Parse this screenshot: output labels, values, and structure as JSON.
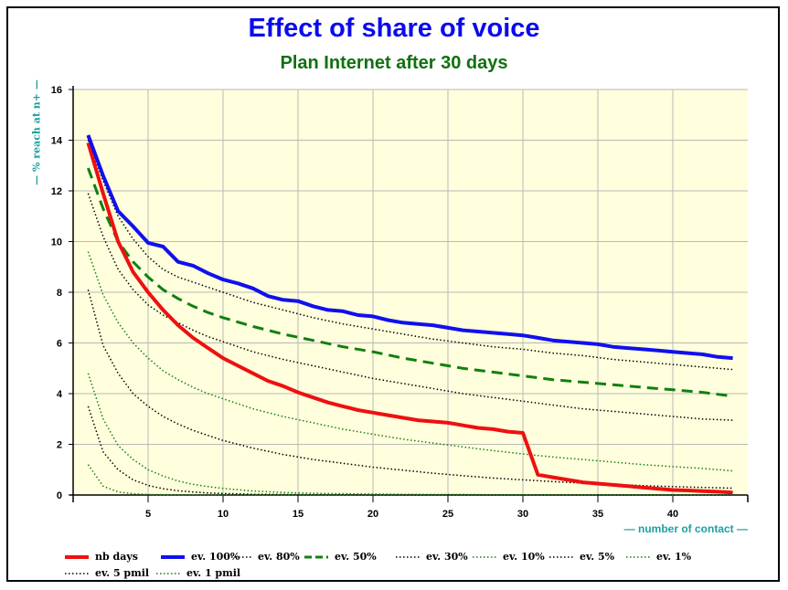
{
  "chart_data": {
    "type": "line",
    "title": "Effect of share of voice",
    "subtitle": "Plan Internet after 30 days",
    "xlabel": "— number of contact —",
    "ylabel": "— % reach at n+ —",
    "xlim": [
      0,
      45
    ],
    "ylim": [
      0,
      16
    ],
    "x_ticks": [
      5,
      10,
      15,
      20,
      25,
      30,
      35,
      40
    ],
    "y_ticks": [
      0,
      2,
      4,
      6,
      8,
      10,
      12,
      14,
      16
    ],
    "grid": true,
    "legend_position": "bottom",
    "plot_background": "#ffffdd",
    "series": [
      {
        "name": "nb days",
        "color": "#ee1010",
        "style": "solid",
        "width": 4,
        "x": [
          1,
          2,
          3,
          4,
          5,
          6,
          7,
          8,
          9,
          10,
          11,
          12,
          13,
          14,
          15,
          16,
          17,
          18,
          19,
          20,
          21,
          22,
          23,
          24,
          25,
          26,
          27,
          28,
          29,
          30,
          31,
          32,
          33,
          34,
          35,
          36,
          37,
          38,
          39,
          40,
          41,
          42,
          43,
          44
        ],
        "values": [
          13.9,
          11.9,
          10.0,
          8.8,
          8.0,
          7.3,
          6.7,
          6.2,
          5.8,
          5.4,
          5.1,
          4.8,
          4.5,
          4.3,
          4.05,
          3.85,
          3.65,
          3.5,
          3.35,
          3.25,
          3.15,
          3.05,
          2.95,
          2.9,
          2.85,
          2.75,
          2.65,
          2.6,
          2.5,
          2.45,
          0.8,
          0.7,
          0.6,
          0.5,
          0.45,
          0.4,
          0.35,
          0.3,
          0.25,
          0.2,
          0.18,
          0.15,
          0.13,
          0.1
        ]
      },
      {
        "name": "ev. 100%",
        "color": "#1010ee",
        "style": "solid",
        "width": 4,
        "x": [
          1,
          2,
          3,
          4,
          5,
          6,
          7,
          8,
          9,
          10,
          11,
          12,
          13,
          14,
          15,
          16,
          17,
          18,
          19,
          20,
          21,
          22,
          23,
          24,
          25,
          26,
          27,
          28,
          29,
          30,
          31,
          32,
          33,
          34,
          35,
          36,
          37,
          38,
          39,
          40,
          41,
          42,
          43,
          44
        ],
        "values": [
          14.2,
          12.6,
          11.2,
          10.6,
          9.95,
          9.8,
          9.2,
          9.05,
          8.75,
          8.5,
          8.35,
          8.15,
          7.85,
          7.7,
          7.65,
          7.45,
          7.3,
          7.25,
          7.1,
          7.05,
          6.9,
          6.8,
          6.75,
          6.7,
          6.6,
          6.5,
          6.45,
          6.4,
          6.35,
          6.3,
          6.2,
          6.1,
          6.05,
          6.0,
          5.95,
          5.85,
          5.8,
          5.75,
          5.7,
          5.65,
          5.6,
          5.55,
          5.45,
          5.4
        ]
      },
      {
        "name": "ev. 80%",
        "color": "#000000",
        "style": "dotted",
        "width": 1.5,
        "x": [
          1,
          2,
          3,
          4,
          5,
          6,
          7,
          8,
          9,
          10,
          12,
          14,
          16,
          18,
          20,
          22,
          24,
          26,
          28,
          30,
          32,
          34,
          36,
          38,
          40,
          42,
          44
        ],
        "values": [
          14.0,
          12.4,
          11.0,
          10.1,
          9.4,
          8.9,
          8.6,
          8.4,
          8.2,
          8.0,
          7.6,
          7.3,
          7.0,
          6.75,
          6.55,
          6.35,
          6.15,
          6.0,
          5.85,
          5.75,
          5.6,
          5.5,
          5.35,
          5.25,
          5.15,
          5.05,
          4.95
        ]
      },
      {
        "name": "ev. 50%",
        "color": "#108010",
        "style": "dashed",
        "width": 3,
        "x": [
          1,
          2,
          3,
          4,
          5,
          6,
          7,
          8,
          9,
          10,
          12,
          14,
          16,
          18,
          20,
          22,
          24,
          26,
          28,
          30,
          32,
          34,
          36,
          38,
          40,
          42,
          44
        ],
        "values": [
          12.9,
          11.3,
          10.0,
          9.2,
          8.6,
          8.1,
          7.75,
          7.45,
          7.2,
          7.0,
          6.65,
          6.35,
          6.1,
          5.85,
          5.65,
          5.4,
          5.2,
          5.0,
          4.85,
          4.7,
          4.55,
          4.45,
          4.35,
          4.25,
          4.15,
          4.05,
          3.9
        ]
      },
      {
        "name": "ev. 30%",
        "color": "#000000",
        "style": "dotted",
        "width": 1.5,
        "x": [
          1,
          2,
          3,
          4,
          5,
          6,
          7,
          8,
          9,
          10,
          12,
          14,
          16,
          18,
          20,
          22,
          24,
          26,
          28,
          30,
          32,
          34,
          36,
          38,
          40,
          42,
          44
        ],
        "values": [
          11.9,
          10.2,
          8.9,
          8.1,
          7.5,
          7.1,
          6.8,
          6.5,
          6.25,
          6.05,
          5.65,
          5.35,
          5.1,
          4.85,
          4.6,
          4.4,
          4.2,
          4.0,
          3.85,
          3.7,
          3.55,
          3.4,
          3.3,
          3.2,
          3.1,
          3.0,
          2.95
        ]
      },
      {
        "name": "ev. 10%",
        "color": "#108010",
        "style": "dotted",
        "width": 1.5,
        "x": [
          1,
          2,
          3,
          4,
          5,
          6,
          7,
          8,
          9,
          10,
          12,
          14,
          16,
          18,
          20,
          22,
          24,
          26,
          28,
          30,
          32,
          34,
          36,
          38,
          40,
          42,
          44
        ],
        "values": [
          9.6,
          7.9,
          6.8,
          6.0,
          5.4,
          4.9,
          4.55,
          4.25,
          4.0,
          3.8,
          3.4,
          3.1,
          2.85,
          2.6,
          2.4,
          2.2,
          2.05,
          1.9,
          1.75,
          1.62,
          1.5,
          1.4,
          1.3,
          1.2,
          1.12,
          1.05,
          0.95
        ]
      },
      {
        "name": "ev. 5%",
        "color": "#000000",
        "style": "dotted",
        "width": 1.5,
        "x": [
          1,
          2,
          3,
          4,
          5,
          6,
          7,
          8,
          9,
          10,
          12,
          14,
          16,
          18,
          20,
          22,
          24,
          26,
          28,
          30,
          32,
          34,
          36,
          38,
          40,
          42,
          44
        ],
        "values": [
          8.1,
          5.9,
          4.8,
          4.0,
          3.5,
          3.1,
          2.8,
          2.55,
          2.35,
          2.15,
          1.85,
          1.6,
          1.4,
          1.25,
          1.1,
          0.98,
          0.86,
          0.76,
          0.67,
          0.6,
          0.53,
          0.47,
          0.42,
          0.37,
          0.33,
          0.3,
          0.27
        ]
      },
      {
        "name": "ev. 1%",
        "color": "#108010",
        "style": "dotted",
        "width": 1.5,
        "x": [
          1,
          2,
          3,
          4,
          5,
          6,
          7,
          8,
          9,
          10,
          12,
          14,
          16,
          18,
          20,
          22,
          24,
          26,
          28,
          30,
          32,
          34,
          36,
          38,
          40,
          42,
          44
        ],
        "values": [
          4.8,
          3.0,
          1.95,
          1.4,
          1.0,
          0.75,
          0.55,
          0.42,
          0.33,
          0.26,
          0.16,
          0.1,
          0.07,
          0.05,
          0.04,
          0.03,
          0.02,
          0.02,
          0.01,
          0.01,
          0.01,
          0.0,
          0.0,
          0.0,
          0.0,
          0.0,
          0.0
        ]
      },
      {
        "name": "ev. 5 pmil",
        "color": "#000000",
        "style": "dotted",
        "width": 1.5,
        "x": [
          1,
          2,
          3,
          4,
          5,
          6,
          7,
          8,
          9,
          10,
          12,
          14,
          16,
          18,
          20,
          22,
          24,
          26,
          28,
          30,
          32,
          34,
          36,
          38,
          40,
          42,
          44
        ],
        "values": [
          3.5,
          1.7,
          1.0,
          0.6,
          0.38,
          0.25,
          0.17,
          0.12,
          0.08,
          0.06,
          0.03,
          0.02,
          0.01,
          0.01,
          0.0,
          0.0,
          0.0,
          0.0,
          0.0,
          0.0,
          0.0,
          0.0,
          0.0,
          0.0,
          0.0,
          0.0,
          0.0
        ]
      },
      {
        "name": "ev. 1 pmil",
        "color": "#108010",
        "style": "dotted",
        "width": 1.5,
        "x": [
          1,
          2,
          3,
          4,
          5,
          6,
          7,
          8,
          9,
          10,
          12,
          14,
          16,
          18,
          20,
          22,
          24,
          26,
          28,
          30,
          32,
          34,
          36,
          38,
          40,
          42,
          44
        ],
        "values": [
          1.2,
          0.35,
          0.12,
          0.05,
          0.02,
          0.01,
          0.0,
          0.0,
          0.0,
          0.0,
          0.0,
          0.0,
          0.0,
          0.0,
          0.0,
          0.0,
          0.0,
          0.0,
          0.0,
          0.0,
          0.0,
          0.0,
          0.0,
          0.0,
          0.0,
          0.0,
          0.0
        ]
      }
    ]
  }
}
